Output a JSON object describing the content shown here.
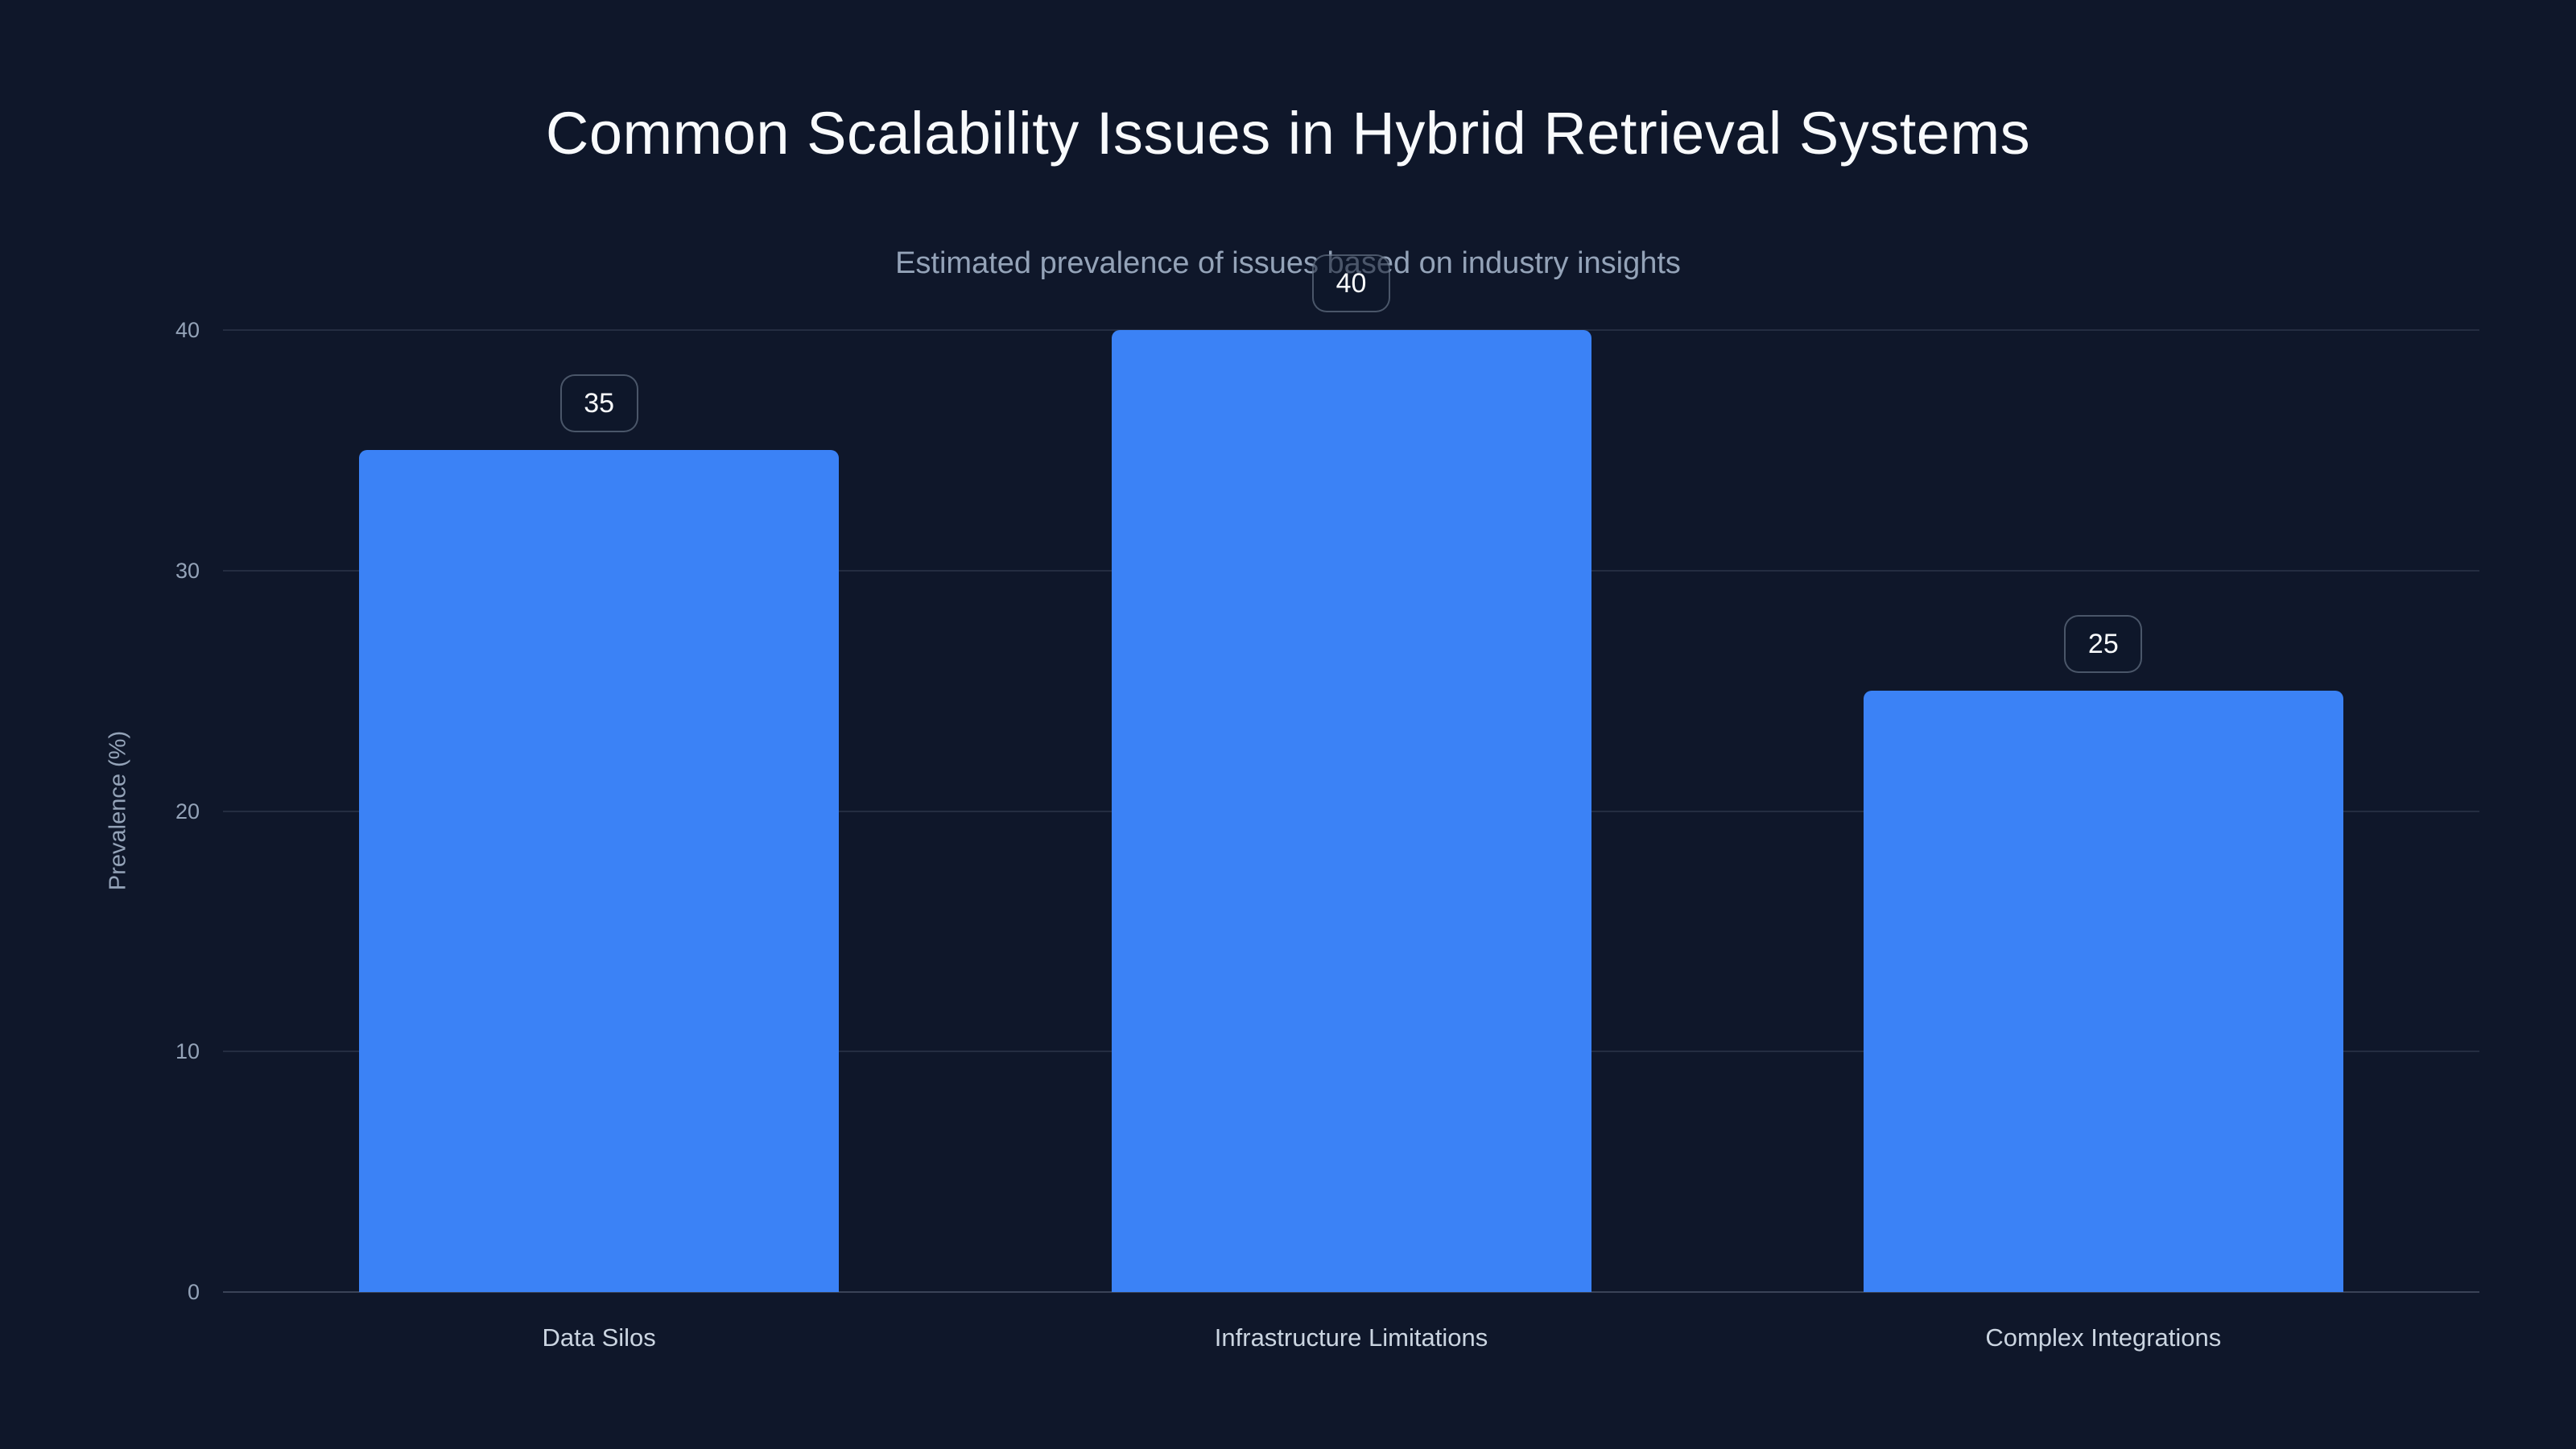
{
  "chart_data": {
    "type": "bar",
    "title": "Common Scalability Issues in Hybrid Retrieval Systems",
    "subtitle": "Estimated prevalence of issues based on industry insights",
    "categories": [
      "Data Silos",
      "Infrastructure Limitations",
      "Complex Integrations"
    ],
    "values": [
      35,
      40,
      25
    ],
    "value_labels": [
      "35",
      "40",
      "25"
    ],
    "xlabel": "",
    "ylabel": "Prevalence (%)",
    "ylim": [
      0,
      40
    ],
    "yticks": [
      0,
      10,
      20,
      30,
      40
    ],
    "grid": "horizontal",
    "legend": "none",
    "colors": {
      "background": "#0f172a",
      "bar": "#3b82f6",
      "title_text": "#f8fafc",
      "subtitle_text": "#94a3b8",
      "tick_text": "#94a3b8",
      "category_text": "#cbd5e1",
      "gridline": "rgba(148,163,184,0.16)",
      "baseline": "rgba(148,163,184,0.32)",
      "badge_text": "#f8fafc",
      "badge_border": "rgba(148,163,184,0.45)",
      "badge_background": "rgba(15,23,42,0.55)"
    }
  }
}
